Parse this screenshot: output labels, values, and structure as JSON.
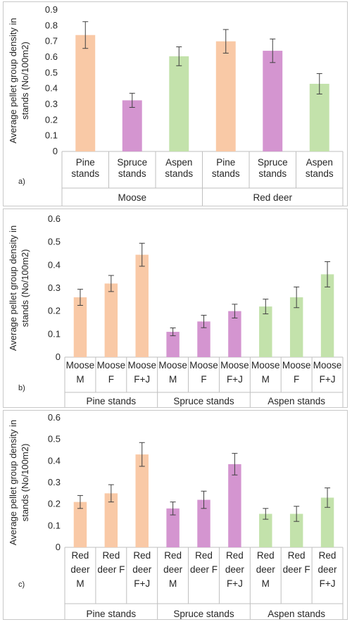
{
  "colors": {
    "pine": "#f9c9a6",
    "spruce": "#d495d0",
    "aspen": "#c3e2ab",
    "axis": "#bfbfbf",
    "error": "#404040"
  },
  "chart_data": [
    {
      "type": "bar",
      "panel_label": "a)",
      "ylabel_lines": [
        "Average pellet group density in",
        "stands (No/100m2)"
      ],
      "ylim": [
        0,
        0.9
      ],
      "yticks": [
        "0",
        "0.1",
        "0.2",
        "0.3",
        "0.4",
        "0.5",
        "0.6",
        "0.7",
        "0.8",
        "0.9"
      ],
      "categories": [
        {
          "lines": [
            "Pine",
            "stands"
          ],
          "value": 0.74,
          "err": 0.085,
          "color": "pine"
        },
        {
          "lines": [
            "Spruce",
            "stands"
          ],
          "value": 0.325,
          "err": 0.045,
          "color": "spruce"
        },
        {
          "lines": [
            "Aspen",
            "stands"
          ],
          "value": 0.605,
          "err": 0.06,
          "color": "aspen"
        },
        {
          "lines": [
            "Pine",
            "stands"
          ],
          "value": 0.7,
          "err": 0.075,
          "color": "pine"
        },
        {
          "lines": [
            "Spruce",
            "stands"
          ],
          "value": 0.64,
          "err": 0.075,
          "color": "spruce"
        },
        {
          "lines": [
            "Aspen",
            "stands"
          ],
          "value": 0.43,
          "err": 0.065,
          "color": "aspen"
        }
      ],
      "groups": [
        "Moose",
        "Red deer"
      ]
    },
    {
      "type": "bar",
      "panel_label": "b)",
      "ylabel_lines": [
        "Average pellet group density in",
        "stands (No/100m2)"
      ],
      "ylim": [
        0,
        0.6
      ],
      "yticks": [
        "0",
        "0.1",
        "0.2",
        "0.3",
        "0.4",
        "0.5",
        "0.6"
      ],
      "categories": [
        {
          "lines": [
            "Moose",
            "M"
          ],
          "value": 0.26,
          "err": 0.035,
          "color": "pine"
        },
        {
          "lines": [
            "Moose",
            "F"
          ],
          "value": 0.32,
          "err": 0.035,
          "color": "pine"
        },
        {
          "lines": [
            "Moose",
            "F+J"
          ],
          "value": 0.445,
          "err": 0.05,
          "color": "pine"
        },
        {
          "lines": [
            "Moose",
            "M"
          ],
          "value": 0.11,
          "err": 0.017,
          "color": "spruce"
        },
        {
          "lines": [
            "Moose",
            "F"
          ],
          "value": 0.155,
          "err": 0.027,
          "color": "spruce"
        },
        {
          "lines": [
            "Moose",
            "F+J"
          ],
          "value": 0.2,
          "err": 0.03,
          "color": "spruce"
        },
        {
          "lines": [
            "Moose",
            "M"
          ],
          "value": 0.22,
          "err": 0.032,
          "color": "aspen"
        },
        {
          "lines": [
            "Moose",
            "F"
          ],
          "value": 0.26,
          "err": 0.045,
          "color": "aspen"
        },
        {
          "lines": [
            "Moose",
            "F+J"
          ],
          "value": 0.36,
          "err": 0.055,
          "color": "aspen"
        }
      ],
      "groups": [
        "Pine stands",
        "Spruce stands",
        "Aspen stands"
      ]
    },
    {
      "type": "bar",
      "panel_label": "c)",
      "ylabel_lines": [
        "Average pellet group density in",
        "stands (No/100m2)"
      ],
      "ylim": [
        0,
        0.6
      ],
      "yticks": [
        "0",
        "0.1",
        "0.2",
        "0.3",
        "0.4",
        "0.5",
        "0.6"
      ],
      "categories": [
        {
          "lines": [
            "Red",
            "deer",
            "M"
          ],
          "value": 0.21,
          "err": 0.03,
          "color": "pine"
        },
        {
          "lines": [
            "Red",
            "deer F"
          ],
          "value": 0.25,
          "err": 0.04,
          "color": "pine"
        },
        {
          "lines": [
            "Red",
            "deer",
            "F+J"
          ],
          "value": 0.43,
          "err": 0.055,
          "color": "pine"
        },
        {
          "lines": [
            "Red",
            "deer",
            "M"
          ],
          "value": 0.18,
          "err": 0.03,
          "color": "spruce"
        },
        {
          "lines": [
            "Red",
            "deer F"
          ],
          "value": 0.22,
          "err": 0.04,
          "color": "spruce"
        },
        {
          "lines": [
            "Red",
            "deer",
            "F+J"
          ],
          "value": 0.385,
          "err": 0.05,
          "color": "spruce"
        },
        {
          "lines": [
            "Red",
            "deer",
            "M"
          ],
          "value": 0.155,
          "err": 0.025,
          "color": "aspen"
        },
        {
          "lines": [
            "Red",
            "deer F"
          ],
          "value": 0.155,
          "err": 0.035,
          "color": "aspen"
        },
        {
          "lines": [
            "Red",
            "deer",
            "F+J"
          ],
          "value": 0.23,
          "err": 0.045,
          "color": "aspen"
        }
      ],
      "groups": [
        "Pine stands",
        "Spruce stands",
        "Aspen stands"
      ]
    }
  ]
}
